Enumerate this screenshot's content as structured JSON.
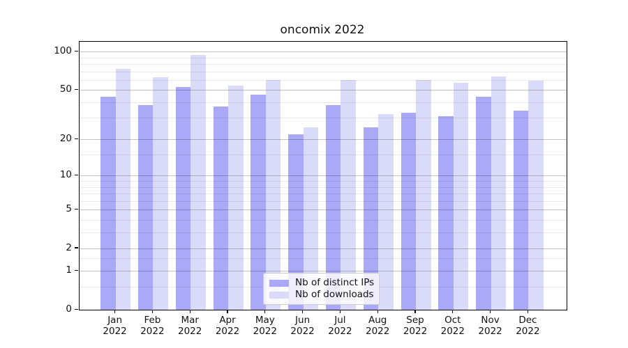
{
  "title": "oncomix 2022",
  "chart_data": {
    "type": "bar",
    "title": "oncomix 2022",
    "categories": [
      "Jan 2022",
      "Feb 2022",
      "Mar 2022",
      "Apr 2022",
      "May 2022",
      "Jun 2022",
      "Jul 2022",
      "Aug 2022",
      "Sep 2022",
      "Oct 2022",
      "Nov 2022",
      "Dec 2022"
    ],
    "series": [
      {
        "name": "Nb of distinct IPs",
        "color": "#a9a9f8",
        "values": [
          44,
          38,
          53,
          37,
          46,
          22,
          38,
          25,
          33,
          31,
          44,
          34
        ]
      },
      {
        "name": "Nb of downloads",
        "color": "#dadaf9",
        "values": [
          73,
          63,
          94,
          54,
          60,
          25,
          60,
          32,
          60,
          57,
          64,
          59
        ]
      }
    ],
    "xlabel": "",
    "ylabel": "",
    "yscale": "log1p",
    "yticks": [
      0,
      1,
      2,
      5,
      10,
      20,
      50,
      100
    ],
    "minor_yticks": [
      0.5,
      1.5,
      3,
      4,
      6,
      7,
      8,
      9,
      15,
      30,
      40,
      60,
      70,
      80,
      90
    ],
    "ylim": [
      0,
      120
    ],
    "grid": true,
    "legend_position": "lower center inside"
  },
  "colors": {
    "ips_bar": "#a9a9f8",
    "downloads_bar": "#dadaf9",
    "major_grid": "#c3c3c3",
    "minor_grid": "#e9e9e9",
    "axis": "#000000",
    "background": "#ffffff"
  }
}
